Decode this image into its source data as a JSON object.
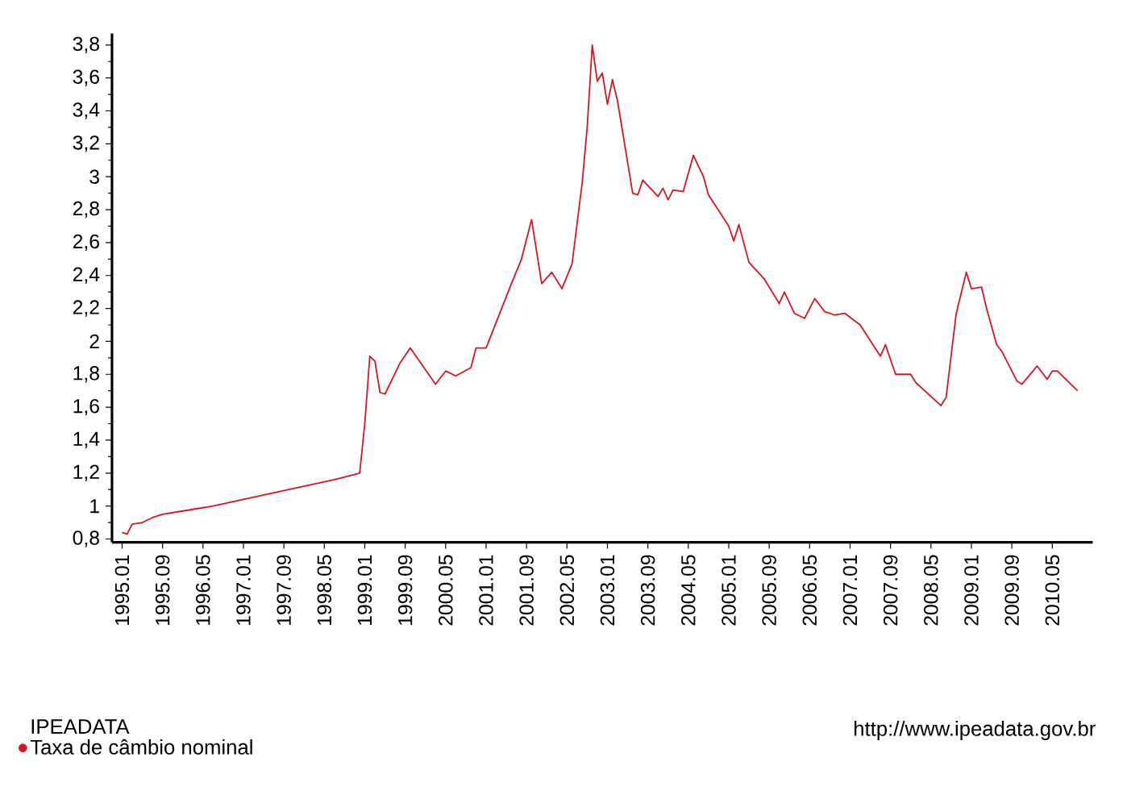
{
  "chart_data": {
    "type": "line",
    "legend_title": "IPEADATA",
    "legend": "bottom left",
    "annotations": [
      "http://www.ipeadata.gov.br"
    ],
    "xlim": [
      "1994-11",
      "2011-01"
    ],
    "ylim": [
      0.78,
      3.87
    ],
    "yticks": [
      {
        "value": 0.8,
        "label": "0,8"
      },
      {
        "value": 1,
        "label": "1"
      },
      {
        "value": 1.2,
        "label": "1,2"
      },
      {
        "value": 1.4,
        "label": "1,4"
      },
      {
        "value": 1.6,
        "label": "1,6"
      },
      {
        "value": 1.8,
        "label": "1,8"
      },
      {
        "value": 2,
        "label": "2"
      },
      {
        "value": 2.2,
        "label": "2,2"
      },
      {
        "value": 2.4,
        "label": "2,4"
      },
      {
        "value": 2.6,
        "label": "2,6"
      },
      {
        "value": 2.8,
        "label": "2,8"
      },
      {
        "value": 3,
        "label": "3"
      },
      {
        "value": 3.2,
        "label": "3,2"
      },
      {
        "value": 3.4,
        "label": "3,4"
      },
      {
        "value": 3.6,
        "label": "3,6"
      },
      {
        "value": 3.8,
        "label": "3,8"
      }
    ],
    "xticks": [
      {
        "value": "1995-01",
        "label": "1995.01"
      },
      {
        "value": "1995-09",
        "label": "1995.09"
      },
      {
        "value": "1996-05",
        "label": "1996.05"
      },
      {
        "value": "1997-01",
        "label": "1997.01"
      },
      {
        "value": "1997-09",
        "label": "1997.09"
      },
      {
        "value": "1998-05",
        "label": "1998.05"
      },
      {
        "value": "1999-01",
        "label": "1999.01"
      },
      {
        "value": "1999-09",
        "label": "1999.09"
      },
      {
        "value": "2000-05",
        "label": "2000.05"
      },
      {
        "value": "2001-01",
        "label": "2001.01"
      },
      {
        "value": "2001-09",
        "label": "2001.09"
      },
      {
        "value": "2002-05",
        "label": "2002.05"
      },
      {
        "value": "2003-01",
        "label": "2003.01"
      },
      {
        "value": "2003-09",
        "label": "2003.09"
      },
      {
        "value": "2004-05",
        "label": "2004.05"
      },
      {
        "value": "2005-01",
        "label": "2005.01"
      },
      {
        "value": "2005-09",
        "label": "2005.09"
      },
      {
        "value": "2006-05",
        "label": "2006.05"
      },
      {
        "value": "2007-01",
        "label": "2007.01"
      },
      {
        "value": "2007-09",
        "label": "2007.09"
      },
      {
        "value": "2008-05",
        "label": "2008.05"
      },
      {
        "value": "2009-01",
        "label": "2009.01"
      },
      {
        "value": "2009-09",
        "label": "2009.09"
      },
      {
        "value": "2010-05",
        "label": "2010.05"
      }
    ],
    "series": [
      {
        "name": "Taxa de câmbio nominal",
        "color": "#d9141e",
        "x": [
          "1995-01",
          "1995-02",
          "1995-03",
          "1995-05",
          "1995-07",
          "1995-09",
          "1996-01",
          "1996-07",
          "1997-01",
          "1997-07",
          "1998-01",
          "1998-07",
          "1998-12",
          "1999-01",
          "1999-02",
          "1999-03",
          "1999-04",
          "1999-05",
          "1999-08",
          "1999-10",
          "2000-03",
          "2000-05",
          "2000-07",
          "2000-10",
          "2000-11",
          "2001-01",
          "2001-06",
          "2001-08",
          "2001-10",
          "2001-12",
          "2002-02",
          "2002-04",
          "2002-06",
          "2002-08",
          "2002-09",
          "2002-10",
          "2002-11",
          "2002-12",
          "2003-01",
          "2003-02",
          "2003-03",
          "2003-06",
          "2003-07",
          "2003-08",
          "2003-11",
          "2003-12",
          "2004-01",
          "2004-02",
          "2004-04",
          "2004-06",
          "2004-08",
          "2004-09",
          "2005-01",
          "2005-02",
          "2005-03",
          "2005-05",
          "2005-08",
          "2005-11",
          "2005-12",
          "2006-02",
          "2006-04",
          "2006-06",
          "2006-08",
          "2006-10",
          "2006-12",
          "2007-03",
          "2007-07",
          "2007-08",
          "2007-10",
          "2008-01",
          "2008-02",
          "2008-07",
          "2008-08",
          "2008-10",
          "2008-12",
          "2009-01",
          "2009-03",
          "2009-04",
          "2009-06",
          "2009-07",
          "2009-10",
          "2009-11",
          "2010-02",
          "2010-04",
          "2010-05",
          "2010-06",
          "2010-10"
        ],
        "values": [
          0.84,
          0.83,
          0.89,
          0.9,
          0.93,
          0.95,
          0.97,
          1.0,
          1.04,
          1.08,
          1.12,
          1.16,
          1.2,
          1.5,
          1.91,
          1.88,
          1.69,
          1.68,
          1.87,
          1.96,
          1.74,
          1.82,
          1.79,
          1.84,
          1.96,
          1.96,
          2.35,
          2.5,
          2.74,
          2.35,
          2.42,
          2.32,
          2.47,
          2.96,
          3.3,
          3.8,
          3.58,
          3.63,
          3.44,
          3.59,
          3.46,
          2.9,
          2.89,
          2.98,
          2.88,
          2.93,
          2.86,
          2.92,
          2.91,
          3.13,
          3.0,
          2.89,
          2.7,
          2.61,
          2.71,
          2.48,
          2.38,
          2.23,
          2.3,
          2.17,
          2.14,
          2.26,
          2.18,
          2.16,
          2.17,
          2.1,
          1.91,
          1.98,
          1.8,
          1.8,
          1.75,
          1.61,
          1.66,
          2.17,
          2.42,
          2.32,
          2.33,
          2.2,
          1.98,
          1.94,
          1.76,
          1.74,
          1.85,
          1.77,
          1.82,
          1.82,
          1.7
        ]
      }
    ]
  }
}
